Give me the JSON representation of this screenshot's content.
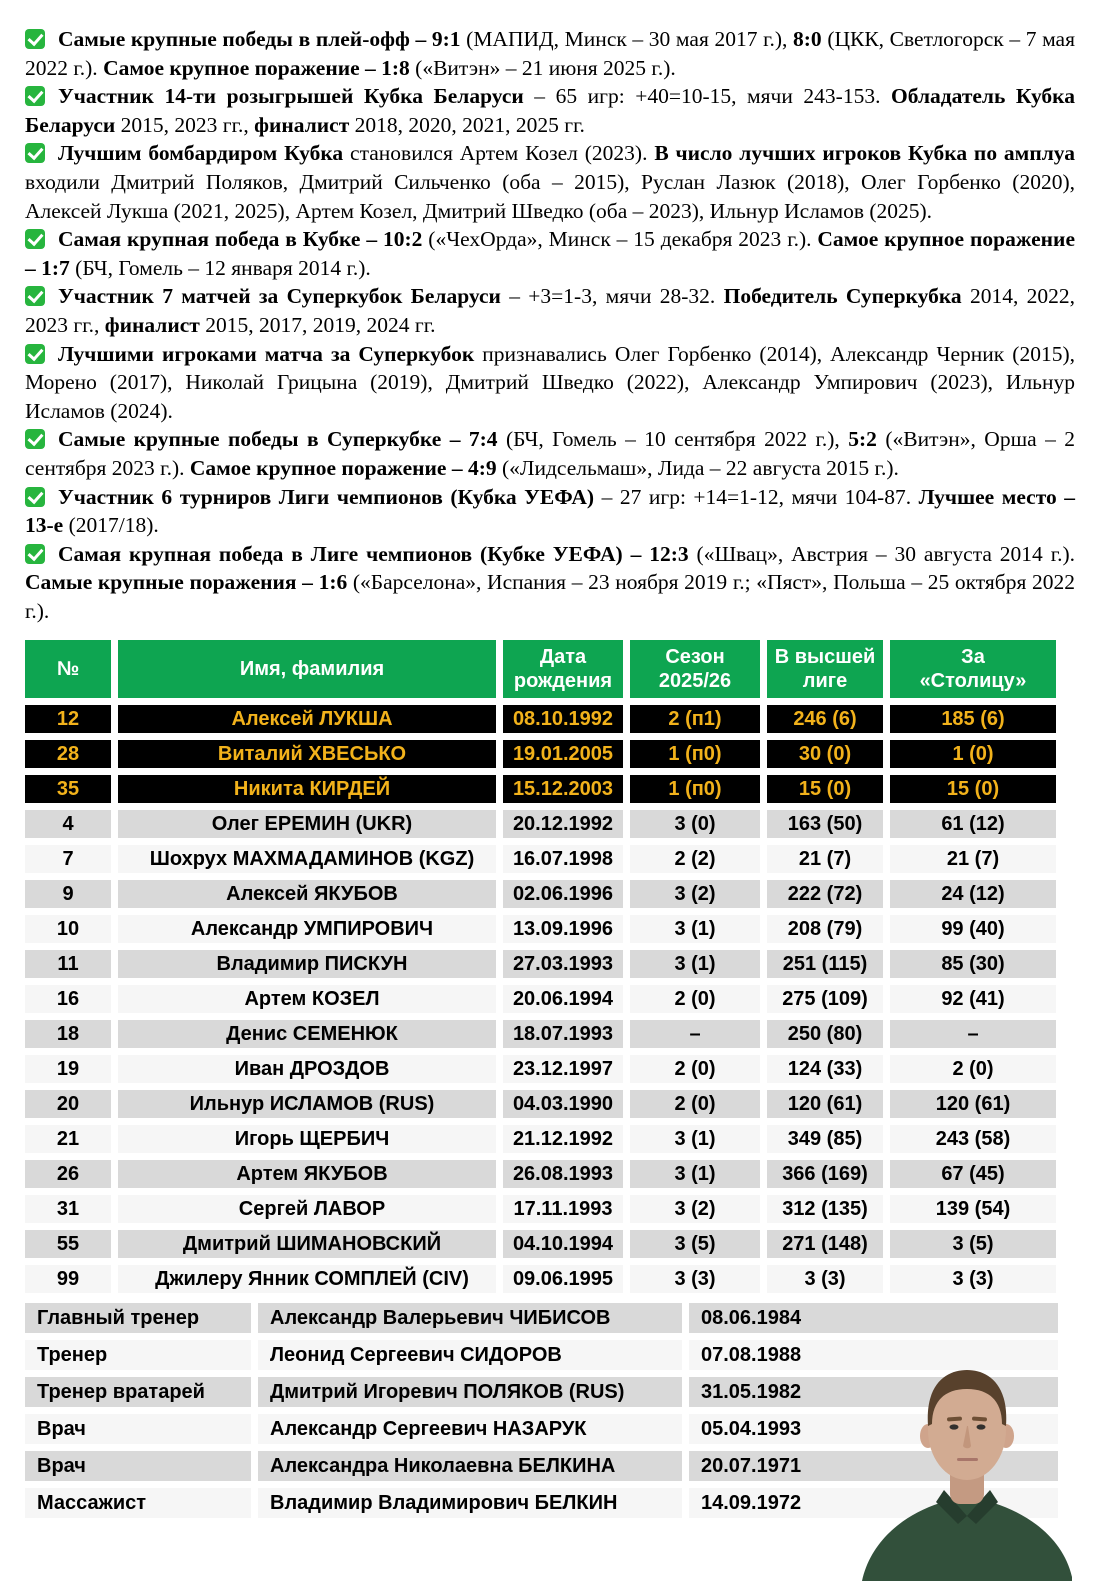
{
  "colors": {
    "header_green": "#0ea551",
    "check_green": "#27b53e",
    "gk_row_bg": "#000000",
    "gk_row_text": "#f2b21b",
    "row_gray": "#d9d9d9",
    "row_light": "#f6f6f6",
    "shirt_green": "#32503b"
  },
  "icons": {
    "bullet": "check-icon"
  },
  "facts": [
    [
      [
        "b",
        "Самые крупные победы в плей-офф – 9:1"
      ],
      [
        "n",
        " (МАПИД, Минск – 30 мая 2017 г.), "
      ],
      [
        "b",
        "8:0"
      ],
      [
        "n",
        " (ЦКК, Светлогорск – 7 мая 2022 г.). "
      ],
      [
        "b",
        "Самое крупное поражение – 1:8"
      ],
      [
        "n",
        " («Витэн» – 21 июня 2025 г.)."
      ]
    ],
    [
      [
        "b",
        "Участник 14-ти розыгрышей Кубка Беларуси"
      ],
      [
        "n",
        " – 65 игр: +40=10-15, мячи 243-153. "
      ],
      [
        "b",
        "Обладатель Кубка Беларуси"
      ],
      [
        "n",
        " 2015, 2023 гг., "
      ],
      [
        "b",
        "финалист"
      ],
      [
        "n",
        " 2018, 2020, 2021, 2025 гг."
      ]
    ],
    [
      [
        "b",
        "Лучшим бомбардиром Кубка"
      ],
      [
        "n",
        " становился Артем Козел (2023). "
      ],
      [
        "b",
        "В число лучших игроков Кубка по амплуа"
      ],
      [
        "n",
        " входили Дмитрий Поляков, Дмитрий Сильченко (оба – 2015), Руслан Лазюк (2018), Олег Горбенко (2020), Алексей Лукша (2021, 2025), Артем Козел, Дмитрий Шведко (оба – 2023), Ильнур Исламов (2025)."
      ]
    ],
    [
      [
        "b",
        "Самая крупная победа в Кубке – 10:2"
      ],
      [
        "n",
        " («ЧехОрда», Минск – 15 декабря 2023 г.). "
      ],
      [
        "b",
        "Самое крупное поражение – 1:7"
      ],
      [
        "n",
        " (БЧ, Гомель – 12 января 2014 г.)."
      ]
    ],
    [
      [
        "b",
        "Участник 7 матчей за Суперкубок Беларуси"
      ],
      [
        "n",
        " – +3=1-3, мячи 28-32. "
      ],
      [
        "b",
        "Победитель Суперкубка"
      ],
      [
        "n",
        " 2014, 2022, 2023 гг., "
      ],
      [
        "b",
        "финалист"
      ],
      [
        "n",
        " 2015, 2017, 2019, 2024 гг."
      ]
    ],
    [
      [
        "b",
        "Лучшими игроками матча за Суперкубок"
      ],
      [
        "n",
        " признавались Олег Горбенко (2014), Александр Черник (2015), Морено (2017), Николай Грицына (2019), Дмитрий Шведко (2022), Александр Умпирович (2023), Ильнур Исламов (2024)."
      ]
    ],
    [
      [
        "b",
        "Самые крупные победы в Суперкубке – 7:4"
      ],
      [
        "n",
        " (БЧ, Гомель – 10 сентября 2022 г.), "
      ],
      [
        "b",
        "5:2"
      ],
      [
        "n",
        " («Витэн», Орша – 2 сентября 2023 г.). "
      ],
      [
        "b",
        "Самое крупное поражение – 4:9"
      ],
      [
        "n",
        " («Лидсельмаш», Лида – 22 августа 2015 г.)."
      ]
    ],
    [
      [
        "b",
        "Участник 6 турниров Лиги чемпионов (Кубка УЕФА)"
      ],
      [
        "n",
        " – 27 игр: +14=1-12, мячи 104-87. "
      ],
      [
        "b",
        "Лучшее место – 13-е"
      ],
      [
        "n",
        " (2017/18)."
      ]
    ],
    [
      [
        "b",
        "Самая крупная победа в Лиге чемпионов (Кубке УЕФА) – 12:3"
      ],
      [
        "n",
        " («Швац», Австрия – 30 августа 2014 г.). "
      ],
      [
        "b",
        "Самые крупные поражения – 1:6"
      ],
      [
        "n",
        " («Барселона», Испания – 23 ноября 2019 г.; «Пяст», Польша – 25 октября 2022 г.)."
      ]
    ]
  ],
  "roster": {
    "headers": [
      "№",
      "Имя, фамилия",
      "Дата\nрождения",
      "Сезон\n2025/26",
      "В высшей\nлиге",
      "За\n«Столицу»"
    ],
    "goalkeepers": [
      [
        "12",
        "Алексей ЛУКША",
        "08.10.1992",
        "2 (п1)",
        "246 (6)",
        "185 (6)"
      ],
      [
        "28",
        "Виталий ХВЕСЬКО",
        "19.01.2005",
        "1 (п0)",
        "30 (0)",
        "1 (0)"
      ],
      [
        "35",
        "Никита КИРДЕЙ",
        "15.12.2003",
        "1 (п0)",
        "15 (0)",
        "15 (0)"
      ]
    ],
    "players": [
      [
        "4",
        "Олег ЕРЕМИН (UKR)",
        "20.12.1992",
        "3 (0)",
        "163 (50)",
        "61 (12)"
      ],
      [
        "7",
        "Шохрух МАХМАДАМИНОВ (KGZ)",
        "16.07.1998",
        "2 (2)",
        "21 (7)",
        "21 (7)"
      ],
      [
        "9",
        "Алексей ЯКУБОВ",
        "02.06.1996",
        "3 (2)",
        "222 (72)",
        "24 (12)"
      ],
      [
        "10",
        "Александр УМПИРОВИЧ",
        "13.09.1996",
        "3 (1)",
        "208 (79)",
        "99 (40)"
      ],
      [
        "11",
        "Владимир ПИСКУН",
        "27.03.1993",
        "3 (1)",
        "251 (115)",
        "85 (30)"
      ],
      [
        "16",
        "Артем КОЗЕЛ",
        "20.06.1994",
        "2 (0)",
        "275 (109)",
        "92 (41)"
      ],
      [
        "18",
        "Денис СЕМЕНЮК",
        "18.07.1993",
        "–",
        "250 (80)",
        "–"
      ],
      [
        "19",
        "Иван ДРОЗДОВ",
        "23.12.1997",
        "2 (0)",
        "124 (33)",
        "2 (0)"
      ],
      [
        "20",
        "Ильнур ИСЛАМОВ (RUS)",
        "04.03.1990",
        "2 (0)",
        "120 (61)",
        "120 (61)"
      ],
      [
        "21",
        "Игорь ЩЕРБИЧ",
        "21.12.1992",
        "3 (1)",
        "349 (85)",
        "243 (58)"
      ],
      [
        "26",
        "Артем ЯКУБОВ",
        "26.08.1993",
        "3 (1)",
        "366 (169)",
        "67 (45)"
      ],
      [
        "31",
        "Сергей ЛАВОР",
        "17.11.1993",
        "3 (2)",
        "312 (135)",
        "139 (54)"
      ],
      [
        "55",
        "Дмитрий ШИМАНОВСКИЙ",
        "04.10.1994",
        "3 (5)",
        "271 (148)",
        "3 (5)"
      ],
      [
        "99",
        "Джилеру Янник СОМПЛЕЙ (CIV)",
        "09.06.1995",
        "3 (3)",
        "3 (3)",
        "3 (3)"
      ]
    ]
  },
  "staff": [
    [
      "Главный тренер",
      "Александр Валерьевич ЧИБИСОВ",
      "08.06.1984"
    ],
    [
      "Тренер",
      "Леонид Сергеевич СИДОРОВ",
      "07.08.1988"
    ],
    [
      "Тренер вратарей",
      "Дмитрий Игоревич ПОЛЯКОВ (RUS)",
      "31.05.1982"
    ],
    [
      "Врач",
      "Александр Сергеевич НАЗАРУК",
      "05.04.1993"
    ],
    [
      "Врач",
      "Александра Николаевна БЕЛКИНА",
      "20.07.1971"
    ],
    [
      "Массажист",
      "Владимир Владимирович БЕЛКИН",
      "14.09.1972"
    ]
  ]
}
